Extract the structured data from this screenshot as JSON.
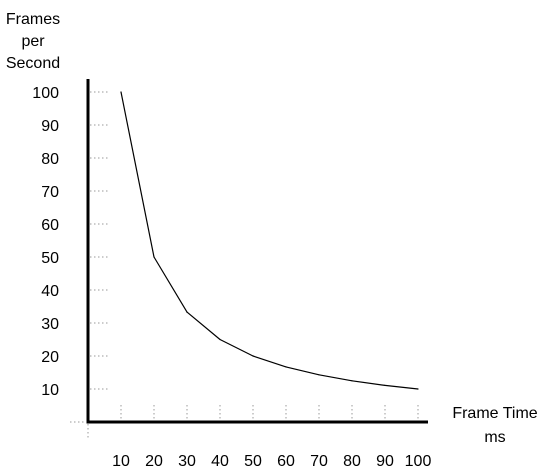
{
  "chart_data": {
    "type": "line",
    "ylabel_lines": [
      "Frames",
      "per",
      "Second"
    ],
    "xlabel_lines": [
      "Frame Time",
      "ms"
    ],
    "x": [
      10,
      20,
      30,
      40,
      50,
      60,
      70,
      80,
      90,
      100
    ],
    "y": [
      100,
      50,
      33.3,
      25,
      20,
      16.7,
      14.3,
      12.5,
      11.1,
      10
    ],
    "x_ticks": [
      10,
      20,
      30,
      40,
      50,
      60,
      70,
      80,
      90,
      100
    ],
    "y_ticks": [
      10,
      20,
      30,
      40,
      50,
      60,
      70,
      80,
      90,
      100
    ],
    "xlim": [
      0,
      100
    ],
    "ylim": [
      0,
      100
    ],
    "grid": "dotted tick marks",
    "legend": "none",
    "colors": {
      "line": "#000000",
      "axis": "#000000",
      "tick_marks": "#9a9a9a"
    }
  }
}
